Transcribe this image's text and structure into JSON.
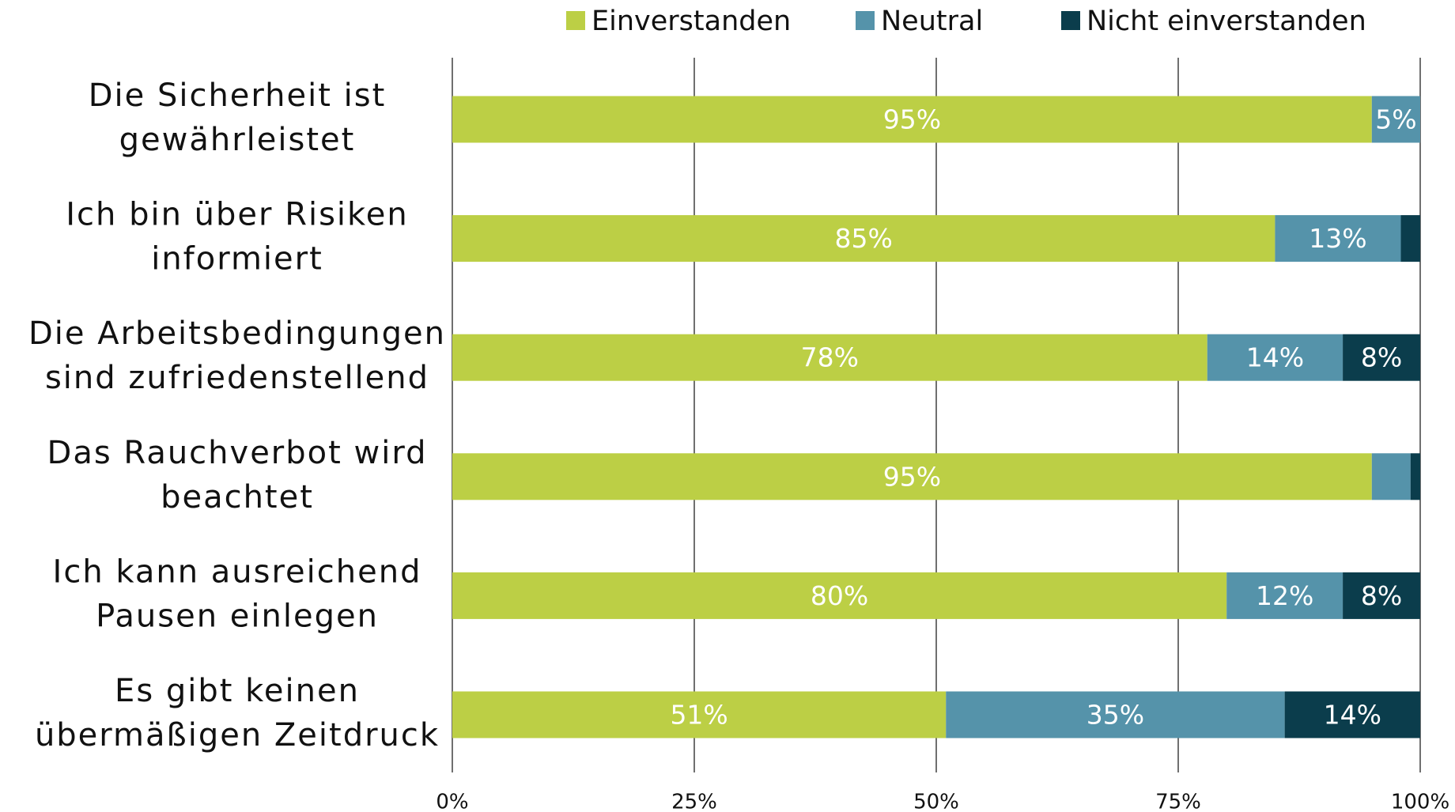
{
  "chart_data": {
    "type": "stacked-bar-horizontal",
    "categories": [
      [
        "Die Sicherheit ist",
        "gewährleistet"
      ],
      [
        "Ich bin über Risiken",
        "informiert"
      ],
      [
        "Die Arbeitsbedingungen",
        "sind zufriedenstellend"
      ],
      [
        "Das Rauchverbot wird",
        "beachtet"
      ],
      [
        "Ich kann ausreichend",
        "Pausen einlegen"
      ],
      [
        "Es gibt keinen",
        "übermäßigen Zeitdruck"
      ]
    ],
    "series": [
      {
        "name": "Einverstanden",
        "color": "#bccf45",
        "values": [
          95,
          85,
          78,
          95,
          80,
          51
        ],
        "value_labels": [
          "95%",
          "85%",
          "78%",
          "95%",
          "80%",
          "51%"
        ]
      },
      {
        "name": "Neutral",
        "color": "#5593aa",
        "values": [
          5,
          13,
          14,
          4,
          12,
          35
        ],
        "value_labels": [
          "5%",
          "13%",
          "14%",
          null,
          "12%",
          "35%"
        ]
      },
      {
        "name": "Nicht einverstanden",
        "color": "#0b3d4c",
        "values": [
          0,
          2,
          8,
          1,
          8,
          14
        ],
        "value_labels": [
          null,
          null,
          "8%",
          null,
          "8%",
          "14%"
        ]
      }
    ],
    "xlim": [
      0,
      100
    ],
    "xticks": [
      {
        "value": 0,
        "label": "0%"
      },
      {
        "value": 25,
        "label": "25%"
      },
      {
        "value": 50,
        "label": "50%"
      },
      {
        "value": 75,
        "label": "75%"
      },
      {
        "value": 100,
        "label": "100%"
      }
    ],
    "grid": true,
    "legend": "top"
  }
}
